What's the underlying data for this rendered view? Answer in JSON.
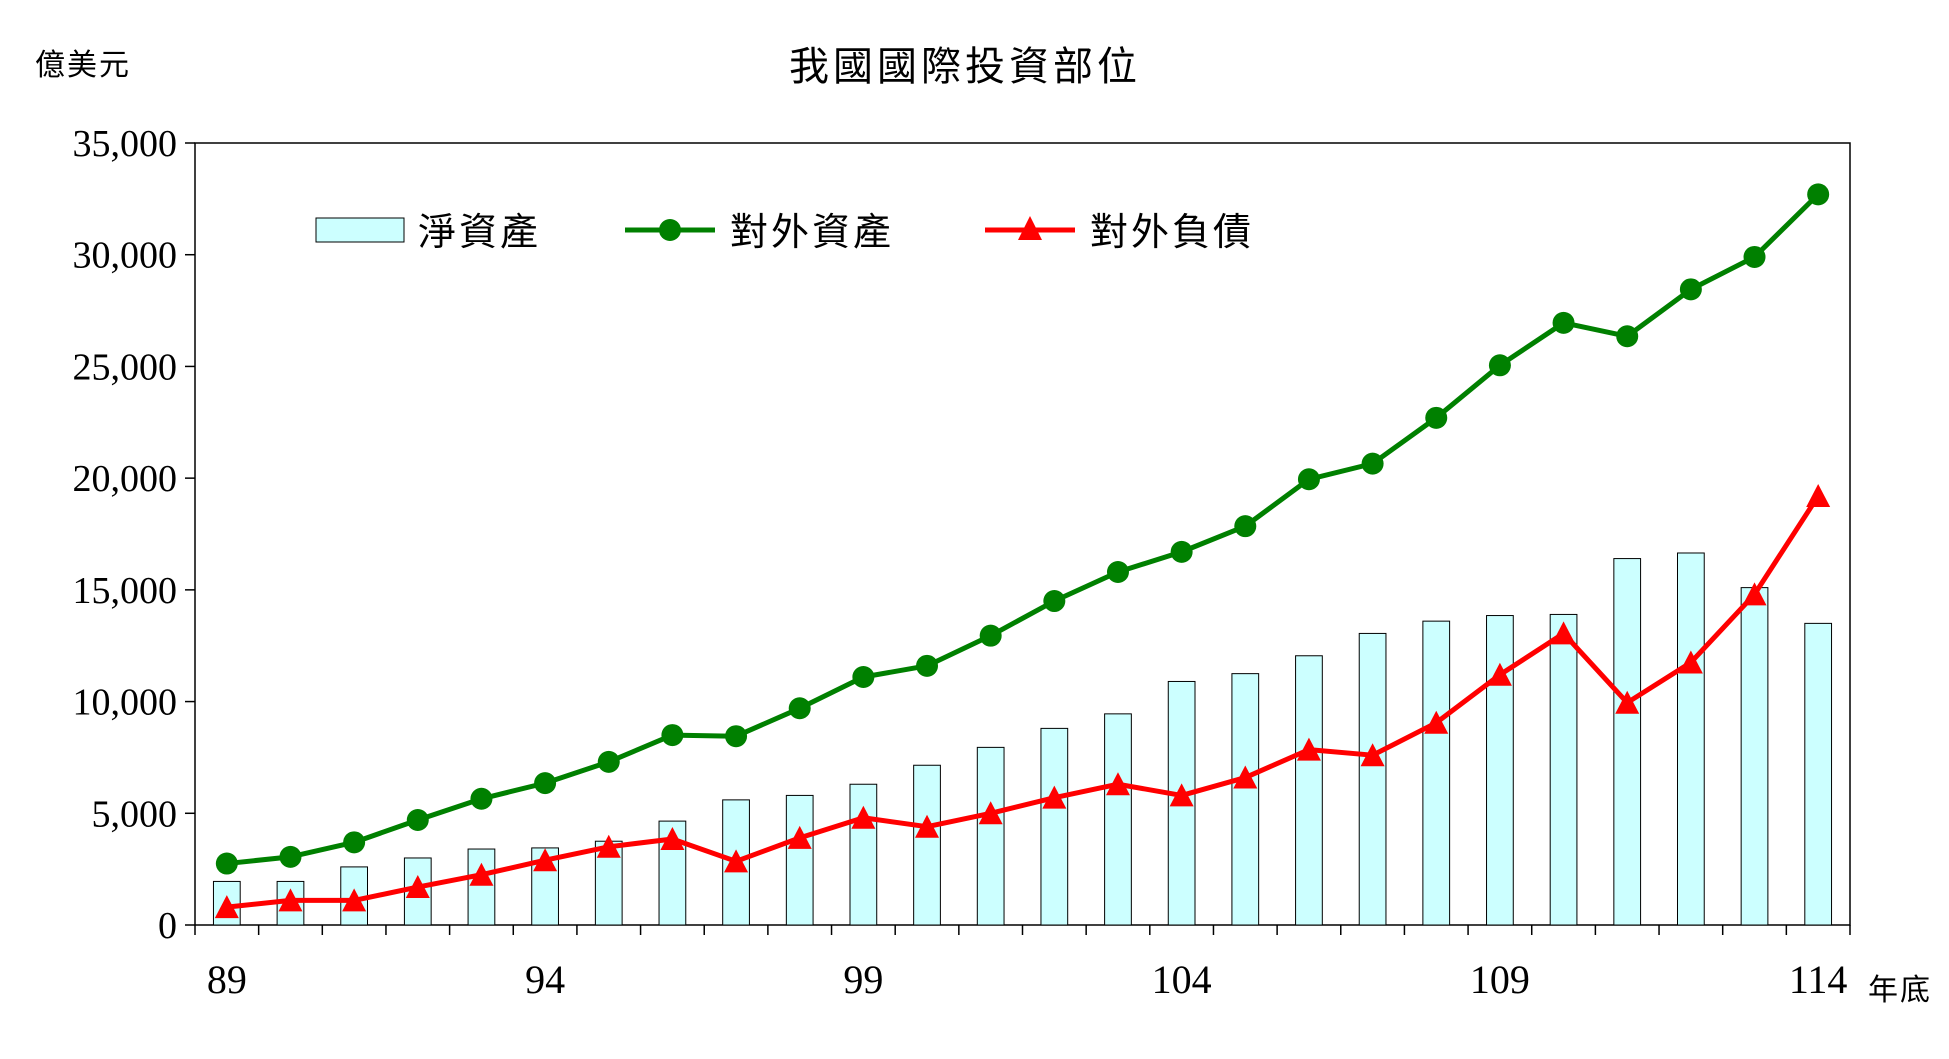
{
  "chart_data": {
    "type": "bar",
    "title": "我國國際投資部位",
    "ylabel": "億美元",
    "xlabel": "年底",
    "ylim": [
      0,
      35000
    ],
    "yticks": [
      0,
      5000,
      10000,
      15000,
      20000,
      25000,
      30000,
      35000
    ],
    "ytick_labels": [
      "0",
      "5,000",
      "10,000",
      "15,000",
      "20,000",
      "25,000",
      "30,000",
      "35,000"
    ],
    "categories": [
      89,
      90,
      91,
      92,
      93,
      94,
      95,
      96,
      97,
      98,
      99,
      100,
      101,
      102,
      103,
      104,
      105,
      106,
      107,
      108,
      109,
      110,
      111,
      112,
      113,
      114
    ],
    "xtick_labels": [
      "89",
      "94",
      "99",
      "104",
      "109",
      "114"
    ],
    "legend_position": "top-left",
    "grid": false,
    "series": [
      {
        "name": "淨資產",
        "type": "bar",
        "color": "#ccffff",
        "values": [
          1950,
          1950,
          2600,
          3000,
          3400,
          3450,
          3750,
          4650,
          5600,
          5800,
          6300,
          7150,
          7950,
          8800,
          9450,
          10900,
          11250,
          12050,
          13050,
          13600,
          13850,
          13900,
          16400,
          16650,
          15100,
          13500
        ]
      },
      {
        "name": "對外資產",
        "type": "line",
        "color": "#008000",
        "marker": "circle",
        "values": [
          2750,
          3050,
          3700,
          4700,
          5650,
          6350,
          7300,
          8500,
          8450,
          9700,
          11100,
          11600,
          12950,
          14500,
          15800,
          16700,
          17850,
          19950,
          20650,
          22700,
          25050,
          26950,
          26350,
          28450,
          29900,
          32700
        ]
      },
      {
        "name": "對外負債",
        "type": "line",
        "color": "#ff0000",
        "marker": "triangle",
        "values": [
          800,
          1100,
          1100,
          1700,
          2250,
          2900,
          3500,
          3850,
          2850,
          3900,
          4800,
          4400,
          5000,
          5700,
          6300,
          5800,
          6600,
          7850,
          7600,
          9050,
          11200,
          13050,
          9950,
          11750,
          14800,
          19200
        ]
      }
    ]
  }
}
